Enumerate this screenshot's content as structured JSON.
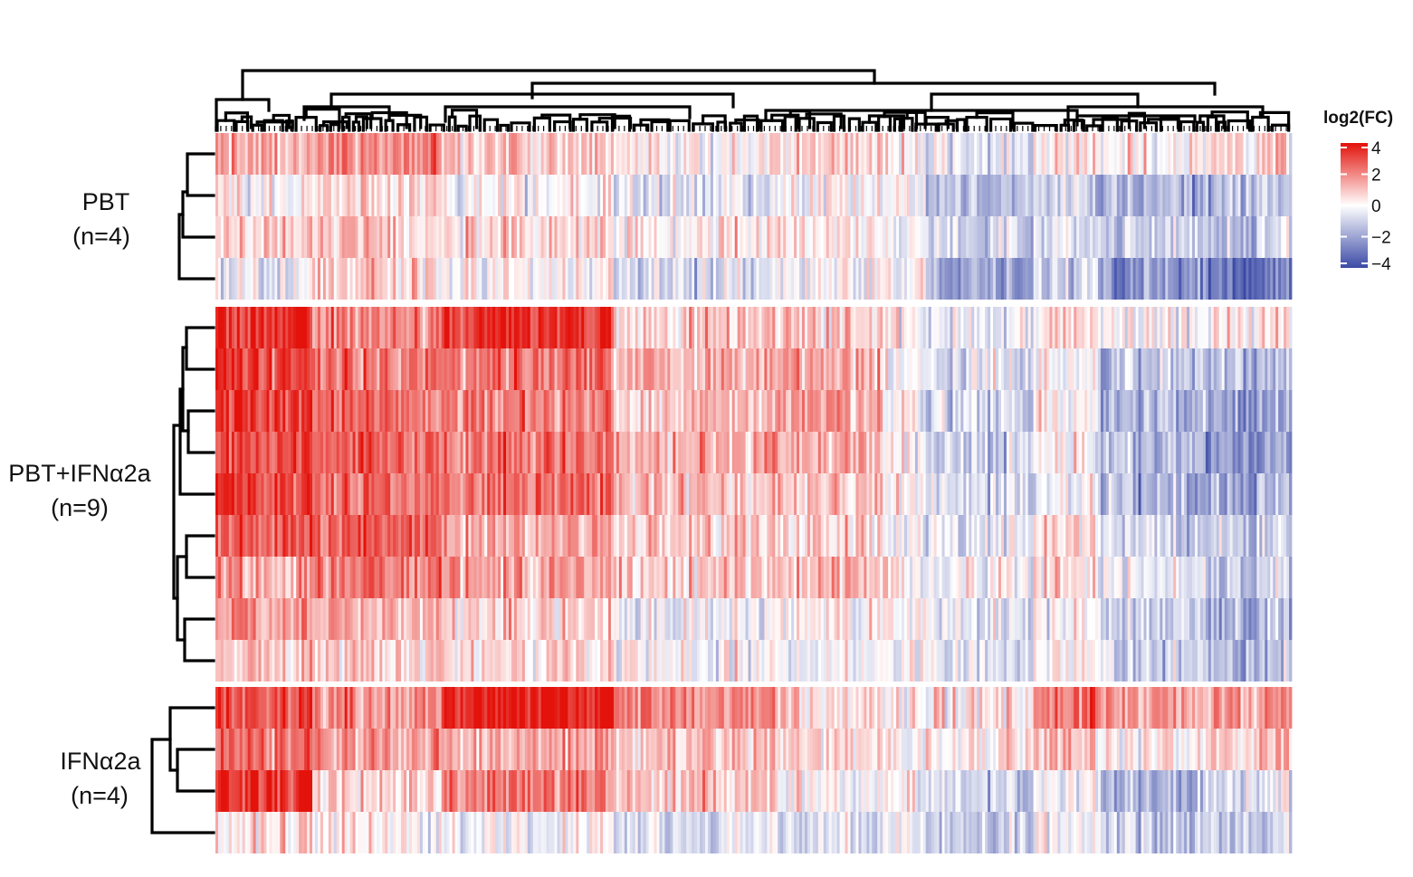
{
  "chart_data": {
    "type": "heatmap",
    "groups": [
      {
        "name": "PBT",
        "n_label": "(n=4)",
        "rows": 4
      },
      {
        "name": "PBT+IFNα2a",
        "n_label": "(n=9)",
        "rows": 9
      },
      {
        "name": "IFNα2a",
        "n_label": "(n=4)",
        "rows": 4
      }
    ],
    "n_columns": 400,
    "column_blocks": [
      {
        "fraction": 0.09,
        "row_means": [
          1.4,
          0.2,
          0.6,
          -0.4,
          3.6,
          3.4,
          3.3,
          3.0,
          3.2,
          2.6,
          1.6,
          1.8,
          1.0,
          3.2,
          2.6,
          3.6,
          0.4
        ]
      },
      {
        "fraction": 0.12,
        "row_means": [
          1.8,
          0.8,
          1.0,
          0.6,
          2.0,
          2.2,
          2.4,
          2.6,
          2.2,
          2.6,
          2.2,
          1.4,
          0.8,
          2.0,
          1.6,
          0.8,
          0.2
        ]
      },
      {
        "fraction": 0.16,
        "row_means": [
          1.0,
          0.0,
          0.8,
          0.2,
          3.4,
          2.4,
          2.2,
          2.4,
          2.6,
          1.4,
          1.8,
          0.8,
          0.6,
          4.0,
          1.6,
          2.2,
          0.0
        ]
      },
      {
        "fraction": 0.15,
        "row_means": [
          0.4,
          -0.6,
          0.4,
          -0.8,
          1.0,
          1.4,
          1.0,
          1.4,
          1.2,
          1.0,
          1.0,
          -0.2,
          0.0,
          2.2,
          1.2,
          1.0,
          -0.4
        ]
      },
      {
        "fraction": 0.1,
        "row_means": [
          0.8,
          0.0,
          0.6,
          0.0,
          0.8,
          1.6,
          1.6,
          1.4,
          1.0,
          0.8,
          1.2,
          0.2,
          -0.2,
          0.6,
          0.8,
          0.0,
          -0.8
        ]
      },
      {
        "fraction": 0.04,
        "row_means": [
          0.0,
          0.0,
          0.0,
          0.2,
          0.0,
          0.0,
          0.2,
          0.0,
          0.0,
          0.0,
          0.0,
          0.0,
          0.0,
          0.0,
          0.4,
          0.0,
          0.0
        ]
      },
      {
        "fraction": 0.1,
        "row_means": [
          -0.6,
          -1.4,
          -1.0,
          -2.0,
          -0.4,
          -0.6,
          -0.8,
          -1.0,
          -0.8,
          -0.4,
          0.0,
          -0.6,
          -0.4,
          0.4,
          0.4,
          -1.0,
          -1.0
        ]
      },
      {
        "fraction": 0.06,
        "row_means": [
          0.4,
          -1.0,
          -0.6,
          -1.0,
          0.6,
          0.0,
          0.4,
          0.0,
          -0.2,
          0.6,
          0.4,
          0.2,
          0.0,
          2.2,
          1.0,
          -0.2,
          -0.2
        ]
      },
      {
        "fraction": 0.1,
        "row_means": [
          0.2,
          -1.6,
          -1.0,
          -2.4,
          0.0,
          -1.2,
          -1.6,
          -1.2,
          -1.6,
          -0.8,
          -0.6,
          -1.0,
          -1.2,
          1.6,
          0.4,
          -1.6,
          -1.0
        ]
      },
      {
        "fraction": 0.08,
        "row_means": [
          0.6,
          -1.4,
          -1.2,
          -3.0,
          0.2,
          -1.6,
          -2.2,
          -2.4,
          -1.8,
          -1.0,
          -1.2,
          -1.6,
          -1.4,
          1.6,
          0.8,
          -0.6,
          -1.2
        ]
      }
    ],
    "column_dendrogram_top_merges": "hierarchical clustering of columns",
    "legend": {
      "title": "log2(FC)",
      "ticks": [
        4,
        2,
        0,
        -2,
        -4
      ],
      "tick_labels": [
        "4",
        "2",
        "0",
        "−2",
        "−4"
      ],
      "range": [
        -4,
        4
      ],
      "colors": {
        "high": "#e3120b",
        "mid": "#ffffff",
        "low": "#3b4aa6"
      }
    }
  }
}
